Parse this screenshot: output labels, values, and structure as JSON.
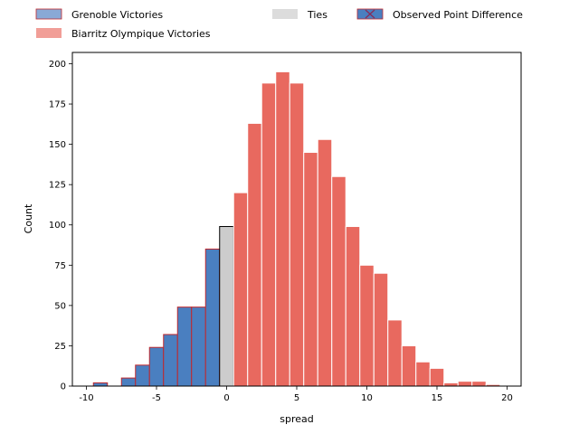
{
  "chart_data": {
    "type": "bar",
    "xlabel": "spread",
    "ylabel": "Count",
    "xlim": [
      -11,
      21
    ],
    "ylim": [
      0,
      207
    ],
    "x_ticks": [
      -10,
      -5,
      0,
      5,
      10,
      15,
      20
    ],
    "y_ticks": [
      0,
      25,
      50,
      75,
      100,
      125,
      150,
      175,
      200
    ],
    "bin_width": 1,
    "legend": {
      "placement": "top (above plot)",
      "entries": [
        {
          "label": "Grenoble Victories",
          "color": "#3a6fb5",
          "alpha": 0.6
        },
        {
          "label": "Biarritz Olympique Victories",
          "color": "#e8443a",
          "alpha": 0.5
        },
        {
          "label": "Ties",
          "color": "#c8c8c8",
          "alpha": 0.6
        },
        {
          "label": "Observed Point Difference",
          "color": "#3a6fb5",
          "marker": "x"
        }
      ]
    },
    "series": [
      {
        "name": "Grenoble Victories",
        "color": "#4a7fc0",
        "edge": "#c0282d",
        "bins": [
          {
            "x": -9,
            "value": 2
          },
          {
            "x": -7,
            "value": 5
          },
          {
            "x": -6,
            "value": 13
          },
          {
            "x": -5,
            "value": 24
          },
          {
            "x": -4,
            "value": 32
          },
          {
            "x": -3,
            "value": 49
          },
          {
            "x": -2,
            "value": 49
          },
          {
            "x": -1,
            "value": 85
          }
        ]
      },
      {
        "name": "Ties",
        "color": "#cccccc",
        "edge": "#000000",
        "bins": [
          {
            "x": 0,
            "value": 99
          }
        ]
      },
      {
        "name": "Biarritz Olympique Victories",
        "color": "#e8695f",
        "edge": "#ffffff",
        "bins": [
          {
            "x": 1,
            "value": 120
          },
          {
            "x": 2,
            "value": 163
          },
          {
            "x": 3,
            "value": 188
          },
          {
            "x": 4,
            "value": 195
          },
          {
            "x": 5,
            "value": 188
          },
          {
            "x": 6,
            "value": 145
          },
          {
            "x": 7,
            "value": 153
          },
          {
            "x": 8,
            "value": 130
          },
          {
            "x": 9,
            "value": 99
          },
          {
            "x": 10,
            "value": 75
          },
          {
            "x": 11,
            "value": 70
          },
          {
            "x": 12,
            "value": 41
          },
          {
            "x": 13,
            "value": 25
          },
          {
            "x": 14,
            "value": 15
          },
          {
            "x": 15,
            "value": 11
          },
          {
            "x": 16,
            "value": 2
          },
          {
            "x": 17,
            "value": 3
          },
          {
            "x": 18,
            "value": 3
          },
          {
            "x": 19,
            "value": 1
          }
        ]
      }
    ]
  }
}
